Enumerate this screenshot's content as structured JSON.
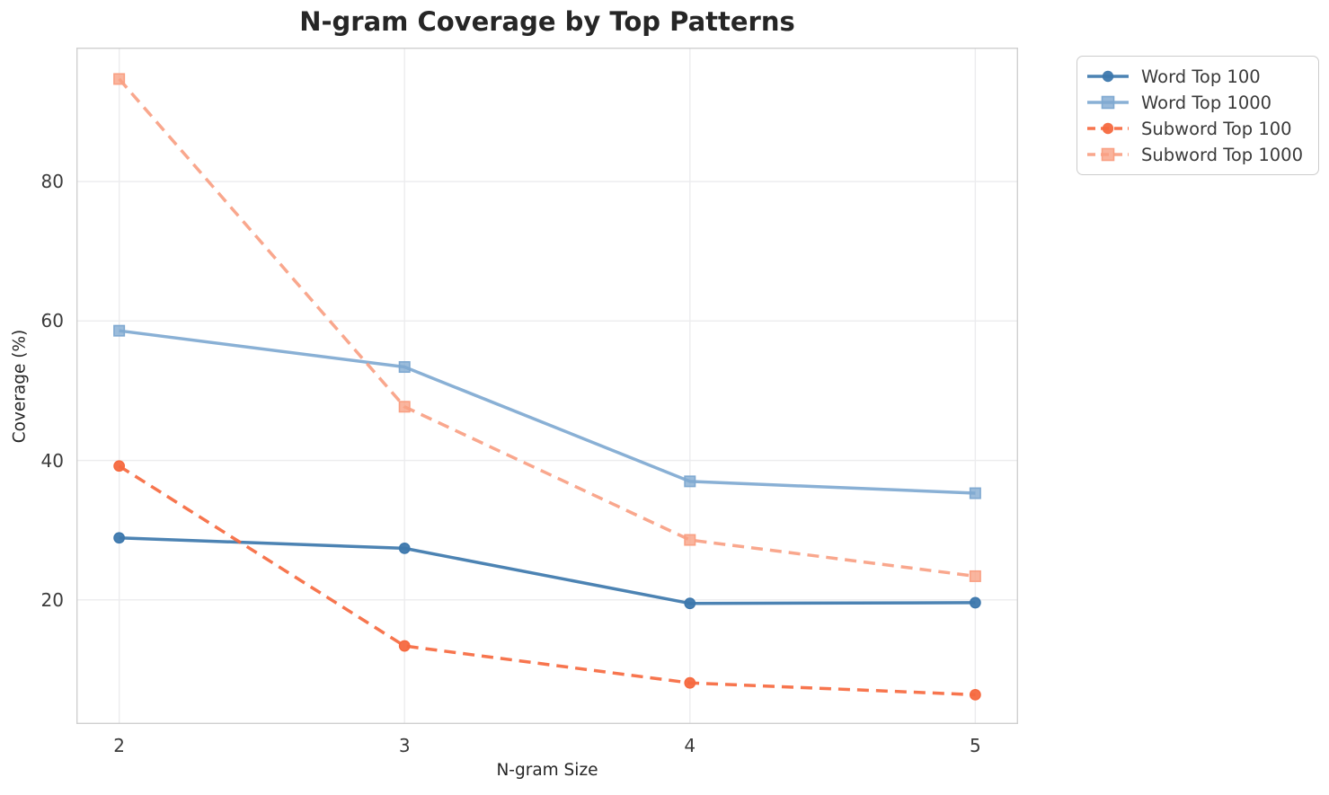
{
  "chart_data": {
    "type": "line",
    "title": "N-gram Coverage by Top Patterns",
    "xlabel": "N-gram Size",
    "ylabel": "Coverage (%)",
    "x": [
      2,
      3,
      4,
      5
    ],
    "xticks": [
      2,
      3,
      4,
      5
    ],
    "yticks": [
      20,
      40,
      60,
      80
    ],
    "xlim": [
      1.85,
      5.15
    ],
    "ylim": [
      2.2,
      99.2
    ],
    "grid": true,
    "legend_position": "outside-top-right",
    "series": [
      {
        "name": "Word Top 100",
        "values": [
          28.9,
          27.4,
          19.5,
          19.6
        ],
        "color": "#3d78ad",
        "marker": "circle",
        "line_style": "solid"
      },
      {
        "name": "Word Top 1000",
        "values": [
          58.6,
          53.4,
          37.0,
          35.3
        ],
        "color": "#7fa9d1",
        "marker": "square",
        "line_style": "solid"
      },
      {
        "name": "Subword Top 100",
        "values": [
          39.2,
          13.4,
          8.1,
          6.4
        ],
        "color": "#f6693f",
        "marker": "circle",
        "line_style": "dashed"
      },
      {
        "name": "Subword Top 1000",
        "values": [
          94.7,
          47.7,
          28.6,
          23.4
        ],
        "color": "#f9a083",
        "marker": "square",
        "line_style": "dashed"
      }
    ],
    "style": {
      "grid_color": "#ececee",
      "spine_color": "#d0d0d0",
      "tick_text_color": "#3b3b3b",
      "title_color": "#262626",
      "background": "#ffffff"
    }
  }
}
